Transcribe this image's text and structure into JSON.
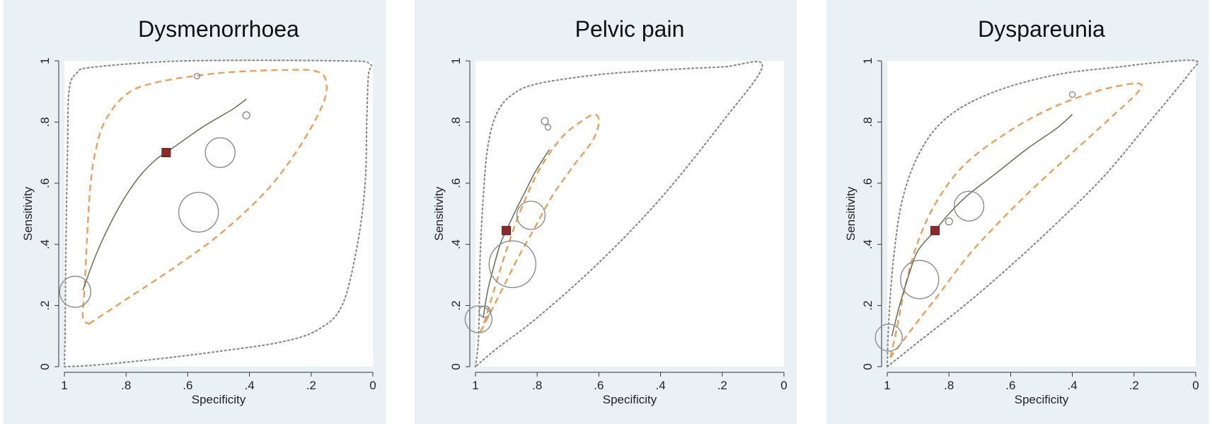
{
  "chart_data": [
    {
      "type": "scatter",
      "title": "Dysmenorrhoea",
      "xlabel": "Specificity",
      "ylabel": "Sensitivity",
      "xlim": [
        1,
        0
      ],
      "ylim": [
        0,
        1
      ],
      "xticks": [
        "1",
        ".8",
        ".6",
        ".4",
        ".2",
        "0"
      ],
      "yticks": [
        "0",
        ".2",
        ".4",
        ".6",
        ".8",
        "1"
      ],
      "summary_point": {
        "specificity": 0.67,
        "sensitivity": 0.7
      },
      "studies": [
        {
          "specificity": 0.965,
          "sensitivity": 0.245,
          "size": 22
        },
        {
          "specificity": 0.565,
          "sensitivity": 0.505,
          "size": 28
        },
        {
          "specificity": 0.495,
          "sensitivity": 0.7,
          "size": 21
        },
        {
          "specificity": 0.57,
          "sensitivity": 0.95,
          "size": 4
        },
        {
          "specificity": 0.41,
          "sensitivity": 0.822,
          "size": 5
        }
      ],
      "sroc_curve": [
        [
          0.94,
          0.25
        ],
        [
          0.9,
          0.36
        ],
        [
          0.85,
          0.47
        ],
        [
          0.8,
          0.56
        ],
        [
          0.75,
          0.63
        ],
        [
          0.7,
          0.68
        ],
        [
          0.67,
          0.7
        ],
        [
          0.6,
          0.75
        ],
        [
          0.55,
          0.785
        ],
        [
          0.5,
          0.815
        ],
        [
          0.45,
          0.845
        ],
        [
          0.41,
          0.875
        ]
      ],
      "confidence_region": [
        [
          0.92,
          0.14
        ],
        [
          0.89,
          0.16
        ],
        [
          0.8,
          0.22
        ],
        [
          0.65,
          0.32
        ],
        [
          0.5,
          0.43
        ],
        [
          0.35,
          0.57
        ],
        [
          0.25,
          0.7
        ],
        [
          0.17,
          0.84
        ],
        [
          0.15,
          0.92
        ],
        [
          0.18,
          0.965
        ],
        [
          0.3,
          0.97
        ],
        [
          0.5,
          0.96
        ],
        [
          0.7,
          0.93
        ],
        [
          0.8,
          0.89
        ],
        [
          0.87,
          0.8
        ],
        [
          0.9,
          0.7
        ],
        [
          0.915,
          0.6
        ],
        [
          0.925,
          0.45
        ],
        [
          0.935,
          0.25
        ],
        [
          0.94,
          0.16
        ],
        [
          0.92,
          0.14
        ]
      ],
      "prediction_region": [
        [
          1.0,
          0.0
        ],
        [
          0.9,
          0.005
        ],
        [
          0.7,
          0.025
        ],
        [
          0.5,
          0.05
        ],
        [
          0.3,
          0.08
        ],
        [
          0.18,
          0.12
        ],
        [
          0.1,
          0.2
        ],
        [
          0.05,
          0.4
        ],
        [
          0.025,
          0.6
        ],
        [
          0.02,
          0.8
        ],
        [
          0.015,
          0.95
        ],
        [
          0.01,
          0.99
        ],
        [
          0.1,
          1.0
        ],
        [
          0.6,
          1.0
        ],
        [
          0.9,
          0.98
        ],
        [
          0.96,
          0.96
        ],
        [
          0.985,
          0.9
        ],
        [
          0.99,
          0.7
        ],
        [
          0.995,
          0.4
        ],
        [
          0.998,
          0.1
        ],
        [
          1.0,
          0.0
        ]
      ]
    },
    {
      "type": "scatter",
      "title": "Pelvic pain",
      "xlabel": "Specificity",
      "ylabel": "Sensitivity",
      "xlim": [
        1,
        0
      ],
      "ylim": [
        0,
        1
      ],
      "xticks": [
        "1",
        ".8",
        ".6",
        ".4",
        ".2",
        "0"
      ],
      "yticks": [
        "0",
        ".2",
        ".4",
        ".6",
        ".8",
        "1"
      ],
      "summary_point": {
        "specificity": 0.9,
        "sensitivity": 0.445
      },
      "studies": [
        {
          "specificity": 0.99,
          "sensitivity": 0.155,
          "size": 19
        },
        {
          "specificity": 0.97,
          "sensitivity": 0.18,
          "size": 8
        },
        {
          "specificity": 0.88,
          "sensitivity": 0.335,
          "size": 33
        },
        {
          "specificity": 0.82,
          "sensitivity": 0.495,
          "size": 20
        },
        {
          "specificity": 0.775,
          "sensitivity": 0.803,
          "size": 5
        },
        {
          "specificity": 0.765,
          "sensitivity": 0.783,
          "size": 4
        }
      ],
      "sroc_curve": [
        [
          0.975,
          0.16
        ],
        [
          0.96,
          0.25
        ],
        [
          0.94,
          0.33
        ],
        [
          0.92,
          0.4
        ],
        [
          0.9,
          0.445
        ],
        [
          0.87,
          0.51
        ],
        [
          0.84,
          0.57
        ],
        [
          0.81,
          0.63
        ],
        [
          0.78,
          0.68
        ],
        [
          0.76,
          0.71
        ]
      ],
      "confidence_region": [
        [
          0.985,
          0.11
        ],
        [
          0.97,
          0.15
        ],
        [
          0.94,
          0.25
        ],
        [
          0.9,
          0.38
        ],
        [
          0.85,
          0.52
        ],
        [
          0.79,
          0.65
        ],
        [
          0.72,
          0.75
        ],
        [
          0.66,
          0.8
        ],
        [
          0.615,
          0.825
        ],
        [
          0.6,
          0.8
        ],
        [
          0.62,
          0.74
        ],
        [
          0.68,
          0.66
        ],
        [
          0.75,
          0.56
        ],
        [
          0.81,
          0.45
        ],
        [
          0.86,
          0.36
        ],
        [
          0.9,
          0.28
        ],
        [
          0.94,
          0.2
        ],
        [
          0.97,
          0.14
        ],
        [
          0.985,
          0.11
        ]
      ],
      "prediction_region": [
        [
          1.0,
          0.0
        ],
        [
          0.99,
          0.1
        ],
        [
          0.985,
          0.35
        ],
        [
          0.975,
          0.55
        ],
        [
          0.96,
          0.72
        ],
        [
          0.93,
          0.83
        ],
        [
          0.88,
          0.89
        ],
        [
          0.8,
          0.925
        ],
        [
          0.6,
          0.955
        ],
        [
          0.4,
          0.97
        ],
        [
          0.2,
          0.98
        ],
        [
          0.07,
          0.985
        ],
        [
          0.2,
          0.8
        ],
        [
          0.4,
          0.55
        ],
        [
          0.6,
          0.34
        ],
        [
          0.8,
          0.16
        ],
        [
          0.93,
          0.06
        ],
        [
          1.0,
          0.0
        ]
      ]
    },
    {
      "type": "scatter",
      "title": "Dyspareunia",
      "xlabel": "Specificity",
      "ylabel": "Sensitivity",
      "xlim": [
        1,
        0
      ],
      "ylim": [
        0,
        1
      ],
      "xticks": [
        "1",
        ".8",
        ".6",
        ".4",
        ".2",
        "0"
      ],
      "yticks": [
        "0",
        ".2",
        ".4",
        ".6",
        ".8",
        "1"
      ],
      "summary_point": {
        "specificity": 0.845,
        "sensitivity": 0.445
      },
      "studies": [
        {
          "specificity": 0.995,
          "sensitivity": 0.095,
          "size": 19
        },
        {
          "specificity": 0.895,
          "sensitivity": 0.285,
          "size": 27
        },
        {
          "specificity": 0.8,
          "sensitivity": 0.475,
          "size": 5
        },
        {
          "specificity": 0.735,
          "sensitivity": 0.525,
          "size": 21
        },
        {
          "specificity": 0.4,
          "sensitivity": 0.89,
          "size": 4
        }
      ],
      "sroc_curve": [
        [
          0.985,
          0.1
        ],
        [
          0.96,
          0.2
        ],
        [
          0.93,
          0.3
        ],
        [
          0.9,
          0.38
        ],
        [
          0.845,
          0.445
        ],
        [
          0.8,
          0.5
        ],
        [
          0.74,
          0.56
        ],
        [
          0.65,
          0.63
        ],
        [
          0.55,
          0.71
        ],
        [
          0.45,
          0.78
        ],
        [
          0.4,
          0.825
        ]
      ],
      "confidence_region": [
        [
          0.99,
          0.03
        ],
        [
          0.97,
          0.12
        ],
        [
          0.94,
          0.27
        ],
        [
          0.9,
          0.41
        ],
        [
          0.84,
          0.54
        ],
        [
          0.75,
          0.66
        ],
        [
          0.62,
          0.76
        ],
        [
          0.48,
          0.84
        ],
        [
          0.34,
          0.895
        ],
        [
          0.24,
          0.92
        ],
        [
          0.18,
          0.925
        ],
        [
          0.19,
          0.895
        ],
        [
          0.28,
          0.81
        ],
        [
          0.4,
          0.7
        ],
        [
          0.52,
          0.59
        ],
        [
          0.64,
          0.47
        ],
        [
          0.74,
          0.36
        ],
        [
          0.83,
          0.24
        ],
        [
          0.9,
          0.15
        ],
        [
          0.96,
          0.07
        ],
        [
          0.99,
          0.03
        ]
      ],
      "prediction_region": [
        [
          1.0,
          0.0
        ],
        [
          0.995,
          0.15
        ],
        [
          0.98,
          0.35
        ],
        [
          0.95,
          0.55
        ],
        [
          0.89,
          0.71
        ],
        [
          0.8,
          0.82
        ],
        [
          0.65,
          0.9
        ],
        [
          0.45,
          0.955
        ],
        [
          0.25,
          0.98
        ],
        [
          0.12,
          0.995
        ],
        [
          0.0,
          1.0
        ],
        [
          0.02,
          0.96
        ],
        [
          0.15,
          0.8
        ],
        [
          0.3,
          0.62
        ],
        [
          0.45,
          0.47
        ],
        [
          0.6,
          0.33
        ],
        [
          0.75,
          0.2
        ],
        [
          0.9,
          0.08
        ],
        [
          1.0,
          0.0
        ]
      ]
    }
  ],
  "colors": {
    "panel_bg": "#eaf1f5",
    "plot_bg": "#ffffff",
    "summary_point": "#8b2a2a",
    "sroc_curve": "#6d7560",
    "confidence_region": "#e8a060",
    "prediction_region": "#8c8c8c",
    "study_circle": "#8c8c8c"
  }
}
